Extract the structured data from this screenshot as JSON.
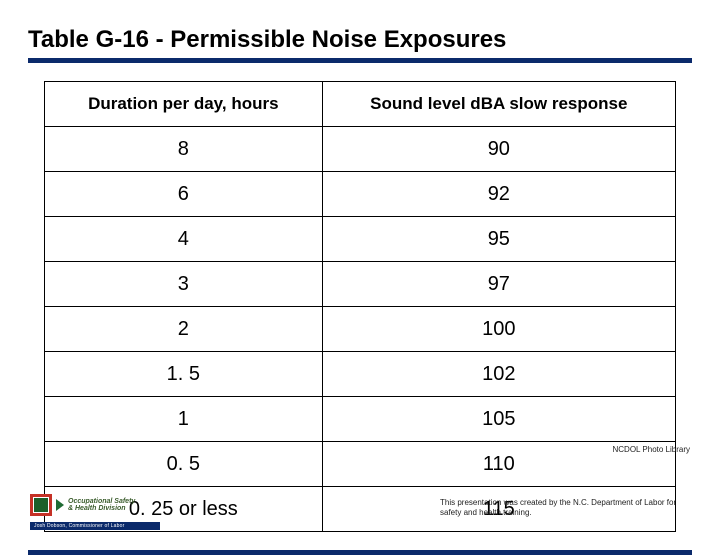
{
  "title": "Table G-16 - Permissible Noise Exposures",
  "accent_color": "#0b2a6b",
  "table": {
    "columns": [
      "Duration per day, hours",
      "Sound level dBA slow response"
    ],
    "rows": [
      [
        "8",
        "90"
      ],
      [
        "6",
        "92"
      ],
      [
        "4",
        "95"
      ],
      [
        "3",
        "97"
      ],
      [
        "2",
        "100"
      ],
      [
        "1. 5",
        "102"
      ],
      [
        "1",
        "105"
      ],
      [
        "0. 5",
        "110"
      ],
      [
        "0. 25 or less",
        "115"
      ]
    ],
    "border_color": "#000000",
    "header_fontsize": 17,
    "cell_fontsize": 20,
    "col_widths_pct": [
      44,
      56
    ]
  },
  "caption": "NCDOL Photo Library",
  "footer_note": "This presentation was created by the N.C. Department of Labor for safety and health training.",
  "logo": {
    "line1": "Occupational Safety",
    "line2": "& Health Division",
    "sub_bar": "Josh Dobson, Commissioner of Labor",
    "outer_color": "#c53126",
    "inner_color": "#1c5f2a",
    "chevron_color": "#1f6b34",
    "text_color": "#3a5c2c",
    "bar_color": "#0b2a6b"
  }
}
